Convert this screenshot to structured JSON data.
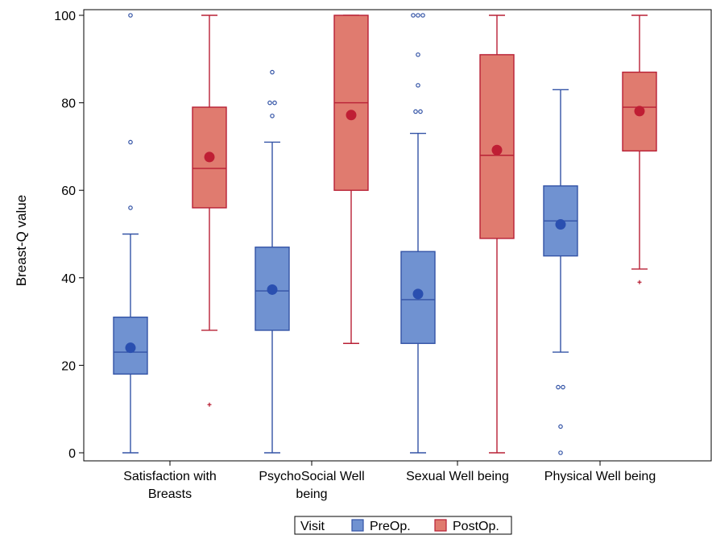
{
  "chart_data": {
    "type": "box",
    "ylabel": "Breast-Q value",
    "ylim": [
      0,
      100
    ],
    "yticks": [
      0,
      20,
      40,
      60,
      80,
      100
    ],
    "categories": [
      {
        "lines": [
          "Satisfaction with",
          "Breasts"
        ]
      },
      {
        "lines": [
          "PsychoSocial Well",
          "being"
        ]
      },
      {
        "lines": [
          "Sexual Well being"
        ]
      },
      {
        "lines": [
          "Physical Well being"
        ]
      }
    ],
    "legend": {
      "title": "Visit",
      "position": "bottom",
      "entries": [
        "PreOp.",
        "PostOp."
      ]
    },
    "colors": {
      "PreOp.": {
        "fill": "#7092d1",
        "stroke": "#3353a6",
        "mean": "#2a4fb0"
      },
      "PostOp.": {
        "fill": "#e07b6f",
        "stroke": "#b82035",
        "mean": "#bf1e34"
      }
    },
    "series": [
      {
        "name": "PreOp.",
        "boxes": [
          {
            "min": 0,
            "q1": 18,
            "median": 23,
            "q3": 31,
            "max": 50,
            "mean": 24,
            "outliers": [
              56,
              71,
              100
            ]
          },
          {
            "min": 0,
            "q1": 28,
            "median": 37,
            "q3": 47,
            "max": 71,
            "mean": 37.3,
            "outliers": [
              77,
              80,
              80,
              87
            ]
          },
          {
            "min": 0,
            "q1": 25,
            "median": 35,
            "q3": 46,
            "max": 73,
            "mean": 36.3,
            "outliers": [
              78,
              78,
              84,
              91,
              100,
              100,
              100
            ]
          },
          {
            "min": 23,
            "q1": 45,
            "median": 53,
            "q3": 61,
            "max": 83,
            "mean": 52.2,
            "outliers": [
              15,
              15,
              6,
              0
            ]
          }
        ]
      },
      {
        "name": "PostOp.",
        "boxes": [
          {
            "min": 28,
            "q1": 56,
            "median": 65,
            "q3": 79,
            "max": 100,
            "mean": 67.6,
            "outliers": [
              11
            ]
          },
          {
            "min": 25,
            "q1": 60,
            "median": 80,
            "q3": 100,
            "max": 100,
            "mean": 77.2,
            "outliers": []
          },
          {
            "min": 0,
            "q1": 49,
            "median": 68,
            "q3": 91,
            "max": 100,
            "mean": 69.2,
            "outliers": []
          },
          {
            "min": 42,
            "q1": 69,
            "median": 79,
            "q3": 87,
            "max": 100,
            "mean": 78.1,
            "outliers": [
              39
            ]
          }
        ]
      }
    ]
  }
}
